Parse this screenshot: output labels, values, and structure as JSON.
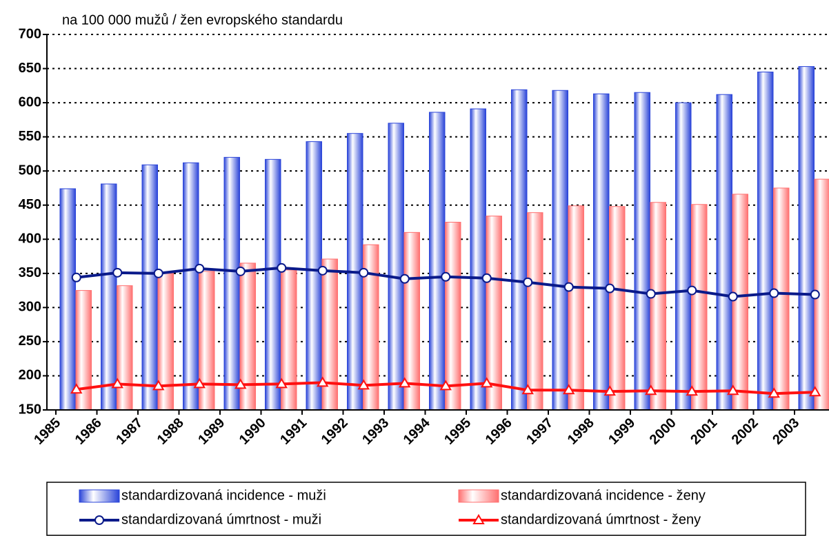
{
  "chart_data": {
    "type": "bar",
    "subtitle": "na 100 000 mužů / žen evropského standardu",
    "categories": [
      "1985",
      "1986",
      "1987",
      "1988",
      "1989",
      "1990",
      "1991",
      "1992",
      "1993",
      "1994",
      "1995",
      "1996",
      "1997",
      "1998",
      "1999",
      "2000",
      "2001",
      "2002",
      "2003"
    ],
    "series": [
      {
        "name": "standardizovaná incidence - muži",
        "type": "bar",
        "color": "#2a44d8",
        "values": [
          474,
          481,
          509,
          512,
          520,
          517,
          543,
          555,
          570,
          586,
          591,
          619,
          618,
          613,
          615,
          600,
          612,
          645,
          653
        ]
      },
      {
        "name": "standardizovaná incidence - ženy",
        "type": "bar",
        "color": "#ff7070",
        "values": [
          325,
          332,
          350,
          353,
          365,
          355,
          371,
          392,
          410,
          425,
          434,
          439,
          449,
          448,
          454,
          451,
          466,
          475,
          488
        ]
      },
      {
        "name": "standardizovaná úmrtnost - muži",
        "type": "line",
        "marker": "circle",
        "color": "#0a1a8a",
        "values": [
          344,
          351,
          350,
          357,
          353,
          358,
          354,
          351,
          342,
          345,
          343,
          337,
          330,
          328,
          320,
          325,
          316,
          321,
          319
        ]
      },
      {
        "name": "standardizovaná úmrtnost - ženy",
        "type": "line",
        "marker": "triangle",
        "color": "#ff1010",
        "values": [
          180,
          188,
          185,
          188,
          187,
          188,
          190,
          186,
          189,
          185,
          189,
          179,
          179,
          177,
          178,
          177,
          178,
          174,
          176
        ]
      }
    ],
    "ylim": [
      150,
      700
    ],
    "yticks": [
      150,
      200,
      250,
      300,
      350,
      400,
      450,
      500,
      550,
      600,
      650,
      700
    ],
    "grid": true
  }
}
